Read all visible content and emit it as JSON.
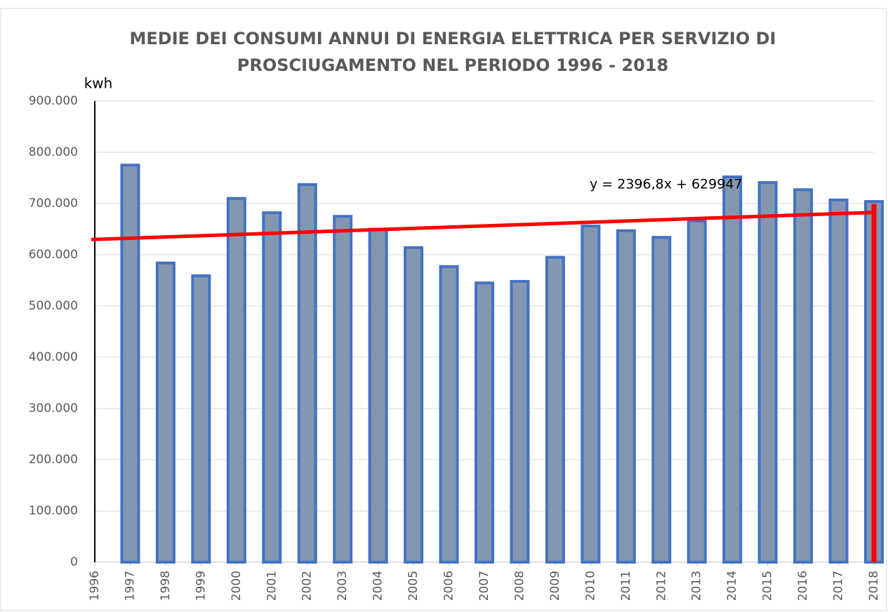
{
  "chart_data": {
    "type": "bar",
    "title": [
      "MEDIE DEI CONSUMI ANNUI DI ENERGIA ELETTRICA PER SERVIZIO DI",
      "PROSCIUGAMENTO NEL PERIODO 1996 - 2018"
    ],
    "y_label": "kwh",
    "categories": [
      "1996",
      "1997",
      "1998",
      "1999",
      "2000",
      "2001",
      "2002",
      "2003",
      "2004",
      "2005",
      "2006",
      "2007",
      "2008",
      "2009",
      "2010",
      "2011",
      "2012",
      "2013",
      "2014",
      "2015",
      "2016",
      "2017",
      "2018"
    ],
    "values": [
      null,
      775000,
      584000,
      559000,
      710000,
      682000,
      737000,
      675000,
      650000,
      614000,
      577000,
      545000,
      548000,
      595000,
      656000,
      647000,
      634000,
      666000,
      752000,
      741000,
      727000,
      707000,
      704000
    ],
    "color": "#8497b0",
    "edge_color": "#4472c4",
    "ylim": [
      0,
      900000
    ],
    "yticks": [
      0,
      {
        "value": 100000,
        "label": "100.000"
      },
      {
        "value": 200000,
        "label": "200.000"
      },
      {
        "value": 300000,
        "label": "300.000"
      },
      {
        "value": 400000,
        "label": "400.000"
      },
      {
        "value": 500000,
        "label": "500.000"
      },
      {
        "value": 600000,
        "label": "600.000"
      },
      {
        "value": 700000,
        "label": "700.000"
      },
      {
        "value": 800000,
        "label": "800.000"
      },
      {
        "value": 900000,
        "label": "900.000"
      }
    ],
    "grid": true,
    "trendline": {
      "equation": "y = 2396,8x + 629947",
      "slope": 2396.8,
      "intercept": 629947,
      "color": "#ff0000"
    }
  }
}
